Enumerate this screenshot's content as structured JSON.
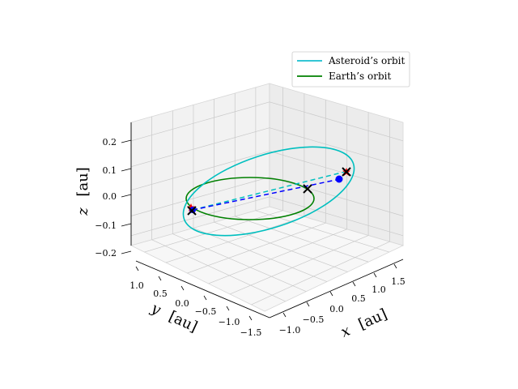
{
  "chart_data": {
    "type": "line",
    "projection": "3d",
    "x_axis": {
      "label_var": "x",
      "label_unit": "[au]",
      "ticks": [
        "−1.0",
        "−0.5",
        "0.0",
        "0.5",
        "1.0",
        "1.5"
      ],
      "range": [
        -1.2,
        1.8
      ]
    },
    "y_axis": {
      "label_var": "y",
      "label_unit": "[au]",
      "ticks": [
        "1.0",
        "0.5",
        "0.0",
        "−0.5",
        "−1.0",
        "−1.5"
      ],
      "range": [
        -1.6,
        1.2
      ]
    },
    "z_axis": {
      "label_var": "z",
      "label_unit": "[au]",
      "ticks": [
        "0.2",
        "0.1",
        "0.0",
        "−0.1",
        "−0.2"
      ],
      "range": [
        -0.25,
        0.25
      ]
    },
    "grid": true,
    "legend": {
      "placement": "top-right",
      "entries": [
        {
          "label": "Asteroid’s orbit",
          "color": "#17becf"
        },
        {
          "label": "Earth’s orbit",
          "color": "#008000"
        }
      ]
    },
    "series": [
      {
        "name": "Asteroid’s orbit",
        "kind": "orbit",
        "color": "#00bfbf",
        "semi_major_au": 1.24,
        "eccentricity": 0.26,
        "perihelion_angle_deg": 170,
        "inclination_deg": 6
      },
      {
        "name": "Earth’s orbit",
        "kind": "orbit",
        "color": "#008000",
        "semi_major_au": 1.0,
        "eccentricity": 0.0,
        "inclination_deg": 0
      }
    ],
    "markers": [
      {
        "kind": "x",
        "color": "#000000",
        "x": 1.05,
        "y": 0.1,
        "z": 0.0
      },
      {
        "kind": "x",
        "color": "#000000",
        "x": -0.85,
        "y": 0.65,
        "z": 0.0
      },
      {
        "kind": "x",
        "color": "#000000",
        "x": 1.3,
        "y": -0.95,
        "z": 0.08
      },
      {
        "kind": "dot",
        "color": "#0000ff",
        "x": -0.85,
        "y": 0.65,
        "z": 0.0
      },
      {
        "kind": "dot",
        "color": "#0000ff",
        "x": 1.1,
        "y": -0.95,
        "z": 0.06
      },
      {
        "kind": "star",
        "color": "#ff0000",
        "x": -0.9,
        "y": 0.7,
        "z": 0.02
      },
      {
        "kind": "star",
        "color": "#ff0000",
        "x": 1.32,
        "y": -0.95,
        "z": 0.09
      }
    ],
    "segments": [
      {
        "style": "dashed",
        "color": "#0000ff",
        "from": [
          -0.85,
          0.65,
          0.0
        ],
        "to": [
          1.1,
          -0.95,
          0.06
        ]
      },
      {
        "style": "dashed",
        "color": "#00bfbf",
        "from": [
          -0.85,
          0.65,
          0.0
        ],
        "to": [
          1.3,
          -0.95,
          0.08
        ]
      }
    ]
  }
}
